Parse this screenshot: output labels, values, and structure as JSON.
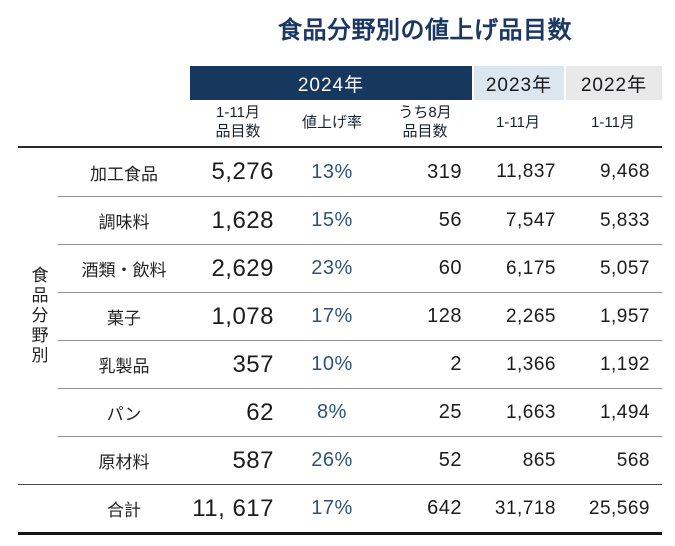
{
  "title": "食品分野別の値上げ品目数",
  "header": {
    "bands": [
      {
        "label": "2024年",
        "bg": "#16375e",
        "text": "#ffffff"
      },
      {
        "label": "2023年",
        "bg": "#dce6f1",
        "text": "#15161a"
      },
      {
        "label": "2022年",
        "bg": "#e9e9e9",
        "text": "#15161a"
      }
    ],
    "columns": [
      "1-11月\n品目数",
      "値上げ率",
      "うち8月\n品目数",
      "1-11月",
      "1-11月"
    ]
  },
  "row_group_label": "食品分野別",
  "table": {
    "rows": [
      {
        "category": "加工食品",
        "items_2024": "5,276",
        "rate_2024": "13%",
        "aug_2024": "319",
        "items_2023": "11,837",
        "items_2022": "9,468"
      },
      {
        "category": "調味料",
        "items_2024": "1,628",
        "rate_2024": "15%",
        "aug_2024": "56",
        "items_2023": "7,547",
        "items_2022": "5,833"
      },
      {
        "category": "酒類・飲料",
        "items_2024": "2,629",
        "rate_2024": "23%",
        "aug_2024": "60",
        "items_2023": "6,175",
        "items_2022": "5,057"
      },
      {
        "category": "菓子",
        "items_2024": "1,078",
        "rate_2024": "17%",
        "aug_2024": "128",
        "items_2023": "2,265",
        "items_2022": "1,957"
      },
      {
        "category": "乳製品",
        "items_2024": "357",
        "rate_2024": "10%",
        "aug_2024": "2",
        "items_2023": "1,366",
        "items_2022": "1,192"
      },
      {
        "category": "パン",
        "items_2024": "62",
        "rate_2024": "8%",
        "aug_2024": "25",
        "items_2023": "1,663",
        "items_2022": "1,494"
      },
      {
        "category": "原材料",
        "items_2024": "587",
        "rate_2024": "26%",
        "aug_2024": "52",
        "items_2023": "865",
        "items_2022": "568"
      },
      {
        "category": "合計",
        "items_2024": "11, 617",
        "rate_2024": "17%",
        "aug_2024": "642",
        "items_2023": "31,718",
        "items_2022": "25,569",
        "total": true
      }
    ]
  },
  "colors": {
    "title": "#1b3763",
    "band_2024_bg": "#16375e",
    "band_2023_bg": "#dce6f1",
    "band_2022_bg": "#e9e9e9",
    "rate_text": "#2e5578",
    "number_text": "#1c1c1c",
    "row_divider": "#909090",
    "bottom_rule": "#141414"
  },
  "chart_data": {
    "type": "table",
    "title": "食品分野別の値上げ品目数",
    "row_group_label": "食品分野別",
    "columns": [
      "2024年 1-11月品目数",
      "2024年 値上げ率",
      "2024年 うち8月品目数",
      "2023年 1-11月",
      "2022年 1-11月"
    ],
    "categories": [
      "加工食品",
      "調味料",
      "酒類・飲料",
      "菓子",
      "乳製品",
      "パン",
      "原材料",
      "合計"
    ],
    "rows": [
      [
        5276,
        "13%",
        319,
        11837,
        9468
      ],
      [
        1628,
        "15%",
        56,
        7547,
        5833
      ],
      [
        2629,
        "23%",
        60,
        6175,
        5057
      ],
      [
        1078,
        "17%",
        128,
        2265,
        1957
      ],
      [
        357,
        "10%",
        2,
        1366,
        1192
      ],
      [
        62,
        "8%",
        25,
        1663,
        1494
      ],
      [
        587,
        "26%",
        52,
        865,
        568
      ],
      [
        11617,
        "17%",
        642,
        31718,
        25569
      ]
    ]
  }
}
